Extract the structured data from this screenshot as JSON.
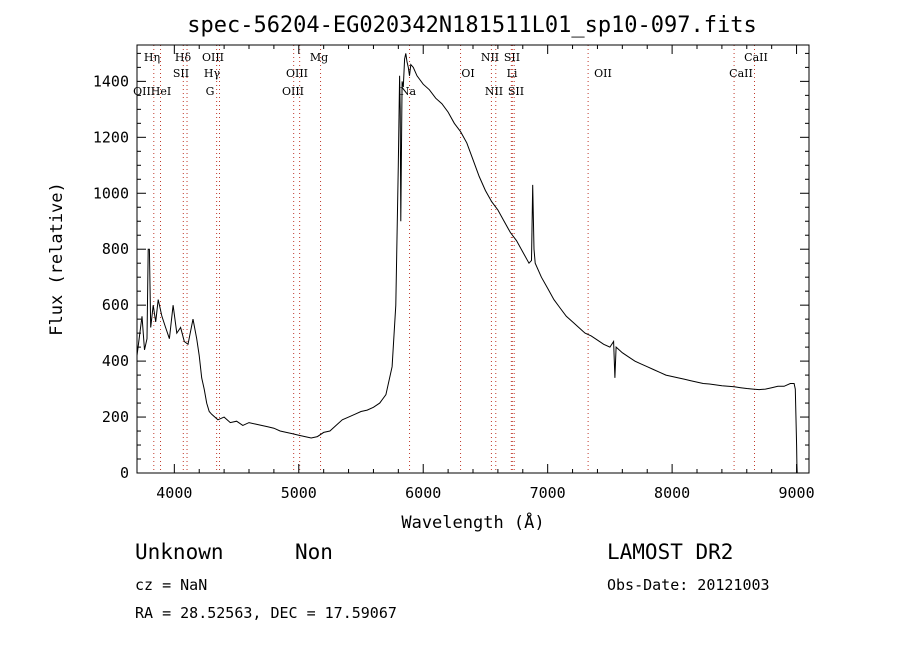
{
  "chart_data": {
    "type": "line",
    "title": "spec-56204-EG020342N181511L01_sp10-097.fits",
    "xlabel": "Wavelength (Å)",
    "ylabel": "Flux (relative)",
    "xlim": [
      3700,
      9100
    ],
    "ylim": [
      0,
      1530
    ],
    "xticks": [
      4000,
      5000,
      6000,
      7000,
      8000,
      9000
    ],
    "yticks": [
      0,
      200,
      400,
      600,
      800,
      1000,
      1200,
      1400
    ],
    "grid": false,
    "series": [
      {
        "x": [
          3700,
          3740,
          3760,
          3780,
          3790,
          3800,
          3810,
          3830,
          3850,
          3870,
          3900,
          3930,
          3960,
          3990,
          4020,
          4050,
          4080,
          4110,
          4150,
          4180,
          4200,
          4220,
          4240,
          4260,
          4280,
          4300,
          4350,
          4400,
          4450,
          4500,
          4550,
          4600,
          4650,
          4700,
          4750,
          4800,
          4850,
          4900,
          4950,
          5000,
          5050,
          5100,
          5150,
          5200,
          5250,
          5300,
          5350,
          5400,
          5450,
          5500,
          5550,
          5600,
          5650,
          5700,
          5750,
          5780,
          5800,
          5810,
          5815,
          5820,
          5830,
          5840,
          5850,
          5860,
          5870,
          5880,
          5890,
          5900,
          5920,
          5950,
          6000,
          6050,
          6100,
          6150,
          6200,
          6250,
          6300,
          6350,
          6400,
          6450,
          6500,
          6550,
          6600,
          6650,
          6700,
          6750,
          6800,
          6850,
          6870,
          6880,
          6890,
          6900,
          6950,
          7000,
          7050,
          7100,
          7150,
          7200,
          7250,
          7300,
          7350,
          7400,
          7450,
          7500,
          7530,
          7540,
          7550,
          7600,
          7650,
          7700,
          7750,
          7800,
          7850,
          7900,
          7950,
          8000,
          8050,
          8100,
          8150,
          8200,
          8250,
          8300,
          8350,
          8400,
          8450,
          8500,
          8550,
          8600,
          8650,
          8700,
          8750,
          8800,
          8850,
          8900,
          8950,
          8980,
          8990,
          9000,
          9003,
          9005
        ],
        "values": [
          420,
          560,
          440,
          480,
          800,
          800,
          520,
          600,
          540,
          620,
          560,
          520,
          480,
          600,
          500,
          520,
          470,
          460,
          550,
          480,
          420,
          340,
          300,
          250,
          220,
          210,
          190,
          200,
          180,
          185,
          170,
          180,
          175,
          170,
          165,
          160,
          150,
          145,
          140,
          135,
          130,
          125,
          130,
          145,
          150,
          170,
          190,
          200,
          210,
          220,
          225,
          235,
          250,
          280,
          380,
          600,
          1100,
          1420,
          1300,
          900,
          1400,
          1380,
          1480,
          1500,
          1470,
          1450,
          1420,
          1460,
          1450,
          1420,
          1390,
          1370,
          1340,
          1320,
          1290,
          1250,
          1220,
          1180,
          1120,
          1060,
          1010,
          970,
          940,
          900,
          860,
          830,
          790,
          750,
          760,
          1030,
          800,
          750,
          700,
          660,
          620,
          590,
          560,
          540,
          520,
          500,
          490,
          475,
          460,
          450,
          470,
          340,
          450,
          430,
          415,
          400,
          390,
          380,
          370,
          360,
          350,
          345,
          340,
          335,
          330,
          325,
          320,
          318,
          315,
          312,
          310,
          308,
          305,
          302,
          300,
          298,
          300,
          305,
          310,
          310,
          320,
          320,
          300,
          100,
          30,
          0
        ]
      }
    ],
    "lines_top_row": [
      "Hη",
      "Hδ",
      "OIII",
      "Mg",
      "NII",
      "SII",
      "CaII"
    ],
    "lines_mid_row": [
      "SII",
      "Hγ",
      "OIII",
      "OI",
      "Li",
      "OII",
      "CaII"
    ],
    "lines_bottom_row": [
      "OII",
      "HeI",
      "G",
      "OIII",
      "Na",
      "NII",
      "SII"
    ]
  },
  "info": {
    "class": "Unknown",
    "subclass": "Non",
    "survey": "LAMOST DR2",
    "cz": "cz = NaN",
    "obs_date": "Obs-Date: 20121003",
    "coords": "RA =  28.52563, DEC =  17.59067"
  }
}
